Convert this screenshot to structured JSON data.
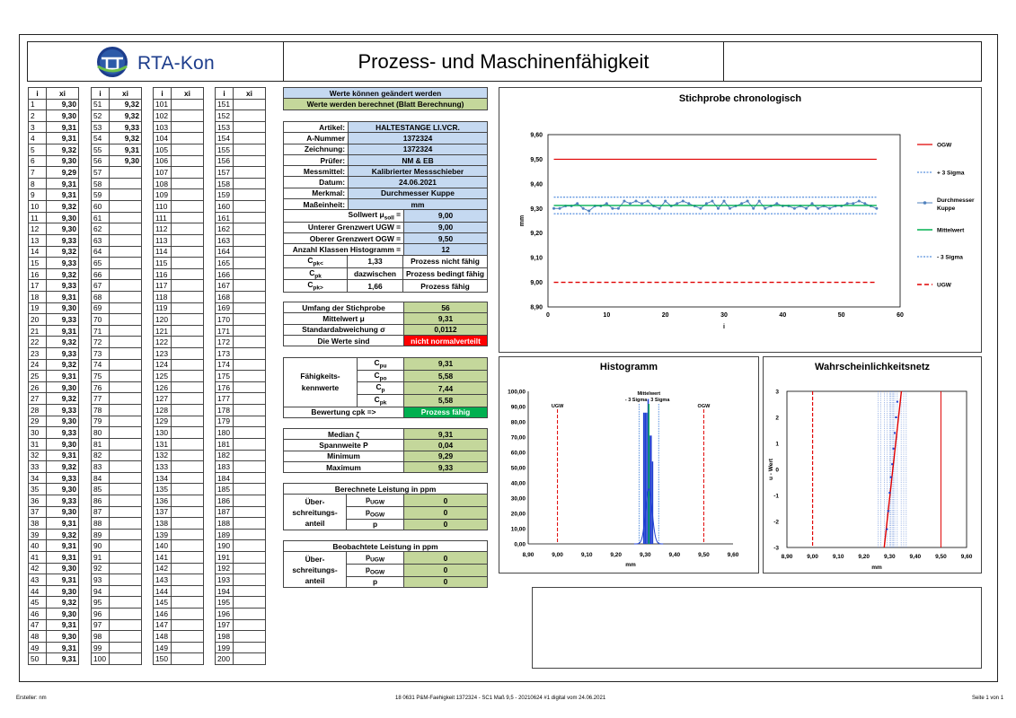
{
  "header": {
    "logo_text": "RTA-Kon",
    "title": "Prozess- und Maschinenfähigkeit"
  },
  "values_table": {
    "col_i": "i",
    "col_x": "xi",
    "values": [
      "9,30",
      "9,30",
      "9,31",
      "9,31",
      "9,32",
      "9,30",
      "9,29",
      "9,31",
      "9,31",
      "9,32",
      "9,30",
      "9,30",
      "9,33",
      "9,32",
      "9,33",
      "9,32",
      "9,33",
      "9,31",
      "9,30",
      "9,33",
      "9,31",
      "9,32",
      "9,33",
      "9,32",
      "9,31",
      "9,30",
      "9,32",
      "9,33",
      "9,30",
      "9,33",
      "9,30",
      "9,31",
      "9,32",
      "9,33",
      "9,30",
      "9,33",
      "9,30",
      "9,31",
      "9,32",
      "9,31",
      "9,31",
      "9,30",
      "9,31",
      "9,30",
      "9,32",
      "9,30",
      "9,31",
      "9,30",
      "9,31",
      "9,31",
      "9,32",
      "9,32",
      "9,33",
      "9,32",
      "9,31",
      "9,30"
    ]
  },
  "info": {
    "legend_blue": "Werte können geändert werden",
    "legend_green": "Werte werden berechnet (Blatt Berechnung)",
    "rows": [
      {
        "label": "Artikel:",
        "value": "HALTESTANGE LI.VCR."
      },
      {
        "label": "A-Nummer",
        "value": "1372324"
      },
      {
        "label": "Zeichnung:",
        "value": "1372324"
      },
      {
        "label": "Prüfer:",
        "value": "NM & EB"
      },
      {
        "label": "Messmittel:",
        "value": "Kalibrierter Messschieber"
      },
      {
        "label": "Datum:",
        "value": "24.06.2021"
      },
      {
        "label": "Merkmal:",
        "value": "Durchmesser Kuppe"
      },
      {
        "label": "Maßeinheit:",
        "value": "mm"
      }
    ],
    "limits": [
      {
        "label": "Sollwert μsoll =",
        "value": "9,00"
      },
      {
        "label": "Unterer Grenzwert UGW =",
        "value": "9,00"
      },
      {
        "label": "Oberer Grenzwert OGW =",
        "value": "9,50"
      },
      {
        "label": "Anzahl Klassen Histogramm =",
        "value": "12"
      }
    ],
    "cpk_rows": [
      {
        "label": "Cpk<",
        "value": "1,33",
        "text": "Prozess nicht fähig"
      },
      {
        "label": "Cpk",
        "value": "dazwischen",
        "text": "Prozess bedingt fähig"
      },
      {
        "label": "Cpk>",
        "value": "1,66",
        "text": "Prozess fähig"
      }
    ]
  },
  "stats": {
    "rows": [
      {
        "label": "Umfang der Stichprobe",
        "value": "56"
      },
      {
        "label": "Mittelwert μ",
        "value": "9,31"
      },
      {
        "label": "Standardabweichung σ",
        "value": "0,0112"
      },
      {
        "label": "Die Werte sind",
        "value": "nicht normalverteilt"
      }
    ]
  },
  "capability": {
    "label": "Fähigkeits-kennwerte",
    "rows": [
      {
        "label": "Cpu",
        "value": "9,31"
      },
      {
        "label": "Cpo",
        "value": "5,58"
      },
      {
        "label": "Cp",
        "value": "7,44"
      },
      {
        "label": "Cpk",
        "value": "5,58"
      }
    ],
    "rating_label": "Bewertung cpk =>",
    "rating_value": "Prozess fähig"
  },
  "median": {
    "rows": [
      {
        "label": "Median ζ",
        "value": "9,31"
      },
      {
        "label": "Spannweite P",
        "value": "0,04"
      },
      {
        "label": "Minimum",
        "value": "9,29"
      },
      {
        "label": "Maximum",
        "value": "9,33"
      }
    ]
  },
  "calc_ppm": {
    "title": "Berechnete Leistung in ppm",
    "label": "Über- schreitungs-anteil",
    "rows": [
      {
        "label": "pUGW",
        "value": "0"
      },
      {
        "label": "pOGW",
        "value": "0"
      },
      {
        "label": "p",
        "value": "0"
      }
    ]
  },
  "obs_ppm": {
    "title": "Beobachtete Leistung in ppm",
    "label": "Über- schreitungs-anteil",
    "rows": [
      {
        "label": "pUGW",
        "value": "0"
      },
      {
        "label": "pOGW",
        "value": "0"
      },
      {
        "label": "p",
        "value": "0"
      }
    ]
  },
  "chart_data": [
    {
      "type": "line",
      "title": "Stichprobe chronologisch",
      "xlabel": "i",
      "ylabel": "mm",
      "xlim": [
        0,
        60
      ],
      "ylim": [
        8.9,
        9.6
      ],
      "xticks": [
        "0",
        "10",
        "20",
        "30",
        "40",
        "50",
        "60"
      ],
      "yticks": [
        "8,90",
        "9,00",
        "9,10",
        "9,20",
        "9,30",
        "9,40",
        "9,50",
        "9,60"
      ],
      "series": [
        {
          "name": "OGW",
          "constant": 9.5,
          "color": "#e00000"
        },
        {
          "name": "+ 3 Sigma",
          "constant": 9.3459,
          "color": "#2e75d6"
        },
        {
          "name": "Durchmesser Kuppe",
          "values": [
            9.3,
            9.3,
            9.31,
            9.31,
            9.32,
            9.3,
            9.29,
            9.31,
            9.31,
            9.32,
            9.3,
            9.3,
            9.33,
            9.32,
            9.33,
            9.32,
            9.33,
            9.31,
            9.3,
            9.33,
            9.31,
            9.32,
            9.33,
            9.32,
            9.31,
            9.3,
            9.32,
            9.33,
            9.3,
            9.33,
            9.3,
            9.31,
            9.32,
            9.33,
            9.3,
            9.33,
            9.3,
            9.31,
            9.32,
            9.31,
            9.31,
            9.3,
            9.31,
            9.3,
            9.32,
            9.3,
            9.31,
            9.3,
            9.31,
            9.31,
            9.32,
            9.32,
            9.33,
            9.32,
            9.31,
            9.3
          ],
          "color": "#4f81bd"
        },
        {
          "name": "Mittelwert",
          "constant": 9.3123,
          "color": "#00b050"
        },
        {
          "name": "- 3 Sigma",
          "constant": 9.2787,
          "color": "#2e75d6"
        },
        {
          "name": "UGW",
          "constant": 9.0,
          "color": "#e00000"
        }
      ],
      "grid": false,
      "legend": "right"
    },
    {
      "type": "bar",
      "title": "Histogramm",
      "xlabel": "mm",
      "xlim": [
        8.9,
        9.6
      ],
      "ylim": [
        0,
        100
      ],
      "xticks": [
        "8,90",
        "9,00",
        "9,10",
        "9,20",
        "9,30",
        "9,40",
        "9,50",
        "9,60"
      ],
      "yticks": [
        "0,00",
        "10,00",
        "20,00",
        "30,00",
        "40,00",
        "50,00",
        "60,00",
        "70,00",
        "80,00",
        "90,00",
        "100,00"
      ],
      "bins": [
        {
          "x": 9.295,
          "value": 86
        },
        {
          "x": 9.3,
          "value": 86
        },
        {
          "x": 9.305,
          "value": 86
        },
        {
          "x": 9.31,
          "value": 95
        },
        {
          "x": 9.315,
          "value": 71
        },
        {
          "x": 9.32,
          "value": 71
        },
        {
          "x": 9.325,
          "value": 54
        }
      ],
      "annotations": [
        "UGW",
        "OGW",
        "Mittelwert",
        "- 3 Sigma",
        "3 Sigma"
      ],
      "ugw": 9.0,
      "ogw": 9.5,
      "mean": 9.3123,
      "minus3": 9.2787,
      "plus3": 9.3459,
      "normal_peak": 36
    },
    {
      "type": "scatter",
      "title": "Wahrscheinlichkeitsnetz",
      "xlabel": "mm",
      "ylabel": "u - Wert",
      "xlim": [
        8.9,
        9.6
      ],
      "ylim": [
        -3,
        3
      ],
      "xticks": [
        "8,90",
        "9,00",
        "9,10",
        "9,20",
        "9,30",
        "9,40",
        "9,50",
        "9,60"
      ],
      "yticks": [
        "-3",
        "-2",
        "-1",
        "0",
        "1",
        "2",
        "3"
      ],
      "ugw": 9.0,
      "ogw": 9.5,
      "line": [
        [
          9.279,
          -3
        ],
        [
          9.346,
          3
        ]
      ]
    }
  ],
  "footer": {
    "left": "Ersteller: nm",
    "center": "18 0631 P&M-Faehigkeit 1372324 - SC1 Maß 9,5 - 20210624 #1 digital vom  24.06.2021",
    "right": "Seite 1 von 1"
  }
}
